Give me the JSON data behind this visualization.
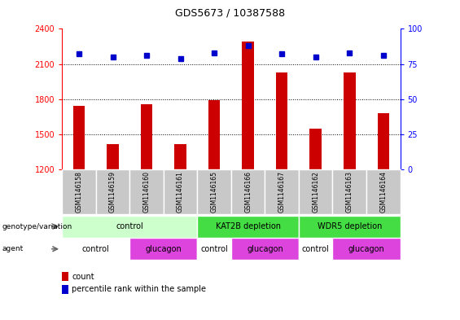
{
  "title": "GDS5673 / 10387588",
  "samples": [
    "GSM1146158",
    "GSM1146159",
    "GSM1146160",
    "GSM1146161",
    "GSM1146165",
    "GSM1146166",
    "GSM1146167",
    "GSM1146162",
    "GSM1146163",
    "GSM1146164"
  ],
  "counts": [
    1740,
    1420,
    1760,
    1420,
    1790,
    2290,
    2030,
    1550,
    2030,
    1680
  ],
  "percentiles": [
    82,
    80,
    81,
    79,
    83,
    88,
    82,
    80,
    83,
    81
  ],
  "ylim_left": [
    1200,
    2400
  ],
  "ylim_right": [
    0,
    100
  ],
  "yticks_left": [
    1200,
    1500,
    1800,
    2100,
    2400
  ],
  "yticks_right": [
    0,
    25,
    50,
    75,
    100
  ],
  "bar_color": "#cc0000",
  "dot_color": "#0000cc",
  "bar_width": 0.35,
  "genotype_groups": [
    {
      "label": "control",
      "start": 0,
      "end": 4,
      "color": "#ccffcc"
    },
    {
      "label": "KAT2B depletion",
      "start": 4,
      "end": 7,
      "color": "#44dd44"
    },
    {
      "label": "WDR5 depletion",
      "start": 7,
      "end": 10,
      "color": "#44dd44"
    }
  ],
  "agent_groups": [
    {
      "label": "control",
      "start": 0,
      "end": 2,
      "color": "#ffffff"
    },
    {
      "label": "glucagon",
      "start": 2,
      "end": 4,
      "color": "#dd44dd"
    },
    {
      "label": "control",
      "start": 4,
      "end": 5,
      "color": "#ffffff"
    },
    {
      "label": "glucagon",
      "start": 5,
      "end": 7,
      "color": "#dd44dd"
    },
    {
      "label": "control",
      "start": 7,
      "end": 8,
      "color": "#ffffff"
    },
    {
      "label": "glucagon",
      "start": 8,
      "end": 10,
      "color": "#dd44dd"
    }
  ],
  "legend_count_label": "count",
  "legend_percentile_label": "percentile rank within the sample",
  "genotype_label": "genotype/variation",
  "agent_label": "agent",
  "sample_bg_color": "#c8c8c8",
  "sample_border_color": "#ffffff"
}
